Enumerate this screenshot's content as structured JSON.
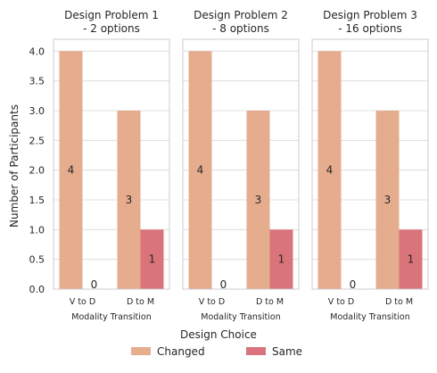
{
  "chart_data": {
    "type": "bar",
    "ylabel": "Number of Participants",
    "xlabel": "Modality Transition",
    "ylim": [
      0,
      4.2
    ],
    "yticks": [
      "0.0",
      "0.5",
      "1.0",
      "1.5",
      "2.0",
      "2.5",
      "3.0",
      "3.5",
      "4.0"
    ],
    "grid": true,
    "legend": {
      "title": "Design Choice",
      "placement": "bottom-center"
    },
    "categories": [
      "V to D",
      "D to M"
    ],
    "series_style": [
      {
        "name": "Changed",
        "color": "#e6ac8e"
      },
      {
        "name": "Same",
        "color": "#d9747a"
      }
    ],
    "panels": [
      {
        "title_line1": "Design Problem 1",
        "title_line2": "- 2 options",
        "series": [
          {
            "name": "Changed",
            "values": [
              4,
              3
            ]
          },
          {
            "name": "Same",
            "values": [
              0,
              1
            ]
          }
        ]
      },
      {
        "title_line1": "Design Problem 2",
        "title_line2": "- 8 options",
        "series": [
          {
            "name": "Changed",
            "values": [
              4,
              3
            ]
          },
          {
            "name": "Same",
            "values": [
              0,
              1
            ]
          }
        ]
      },
      {
        "title_line1": "Design Problem 3",
        "title_line2": "- 16 options",
        "series": [
          {
            "name": "Changed",
            "values": [
              4,
              3
            ]
          },
          {
            "name": "Same",
            "values": [
              0,
              1
            ]
          }
        ]
      }
    ]
  }
}
